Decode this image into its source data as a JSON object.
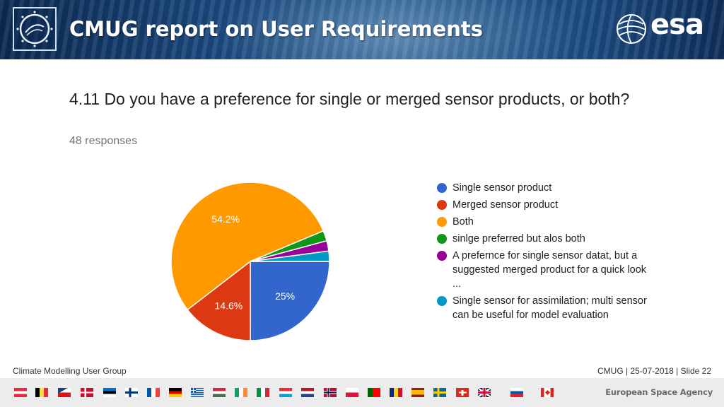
{
  "header": {
    "title": "CMUG report on User Requirements",
    "logo_text": "esa"
  },
  "question": {
    "text": "4.11 Do you have a preference for single or merged sensor products, or both?",
    "responses": "48 responses"
  },
  "chart_data": {
    "type": "pie",
    "title": "4.11 Do you have a preference for single or merged sensor products, or both?",
    "total_responses": 48,
    "slices": [
      {
        "label": "Single sensor product",
        "value": 25,
        "display": "25%",
        "color": "#3366cc"
      },
      {
        "label": "Merged sensor product",
        "value": 14.6,
        "display": "14.6%",
        "color": "#dc3912"
      },
      {
        "label": "Both",
        "value": 54.2,
        "display": "54.2%",
        "color": "#ff9900"
      },
      {
        "label": "sinlge preferred but alos both",
        "value": 2.1,
        "display": "",
        "color": "#109618"
      },
      {
        "label": "A prefernce for single sensor datat, but a suggested merged product for a quick look ...",
        "value": 2.1,
        "display": "",
        "color": "#990099"
      },
      {
        "label": "Single sensor for assimilation; multi sensor can be useful for model evaluation",
        "value": 2.1,
        "display": "",
        "color": "#0099c6"
      }
    ],
    "legend_position": "right"
  },
  "footer": {
    "left": "Climate Modelling User Group",
    "right": "CMUG | 25-07-2018 | Slide  22",
    "agency": "European Space Agency"
  },
  "flags": [
    "austria",
    "belgium",
    "czechia",
    "denmark",
    "estonia",
    "finland",
    "france",
    "germany",
    "greece",
    "hungary",
    "ireland",
    "italy",
    "luxembourg",
    "netherlands",
    "norway",
    "poland",
    "portugal",
    "romania",
    "spain",
    "sweden",
    "switzerland",
    "united-kingdom",
    "slovenia",
    "canada"
  ]
}
